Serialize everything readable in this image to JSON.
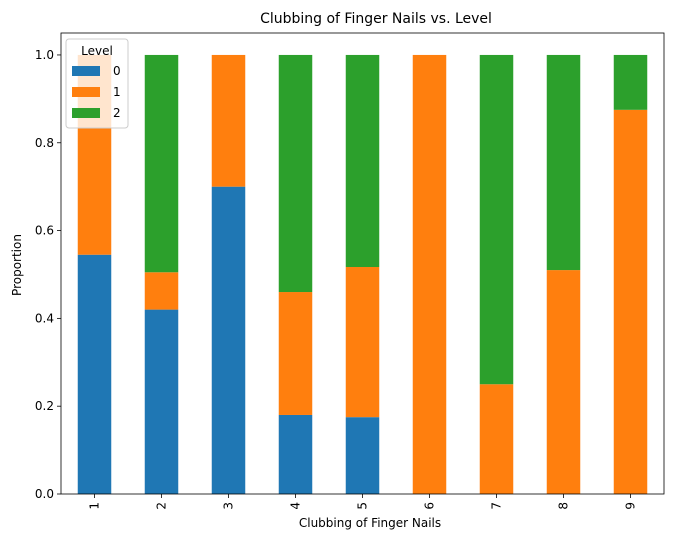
{
  "chart_data": {
    "type": "bar",
    "stacked": true,
    "title": "Clubbing of Finger Nails vs. Level",
    "xlabel": "Clubbing of Finger Nails",
    "ylabel": "Proportion",
    "ylim": [
      0,
      1.05
    ],
    "yticks": [
      "0.0",
      "0.2",
      "0.4",
      "0.6",
      "0.8",
      "1.0"
    ],
    "categories": [
      "1",
      "2",
      "3",
      "4",
      "5",
      "6",
      "7",
      "8",
      "9"
    ],
    "legend": {
      "title": "Level",
      "position": "top-left"
    },
    "series": [
      {
        "name": "0",
        "color": "#1f77b4",
        "values": [
          0.545,
          0.42,
          0.7,
          0.18,
          0.175,
          0.0,
          0.0,
          0.0,
          0.0
        ]
      },
      {
        "name": "1",
        "color": "#ff7f0e",
        "values": [
          0.455,
          0.085,
          0.3,
          0.28,
          0.342,
          1.0,
          0.25,
          0.51,
          0.875
        ]
      },
      {
        "name": "2",
        "color": "#2ca02c",
        "values": [
          0.0,
          0.495,
          0.0,
          0.54,
          0.483,
          0.0,
          0.75,
          0.49,
          0.125
        ]
      }
    ]
  }
}
